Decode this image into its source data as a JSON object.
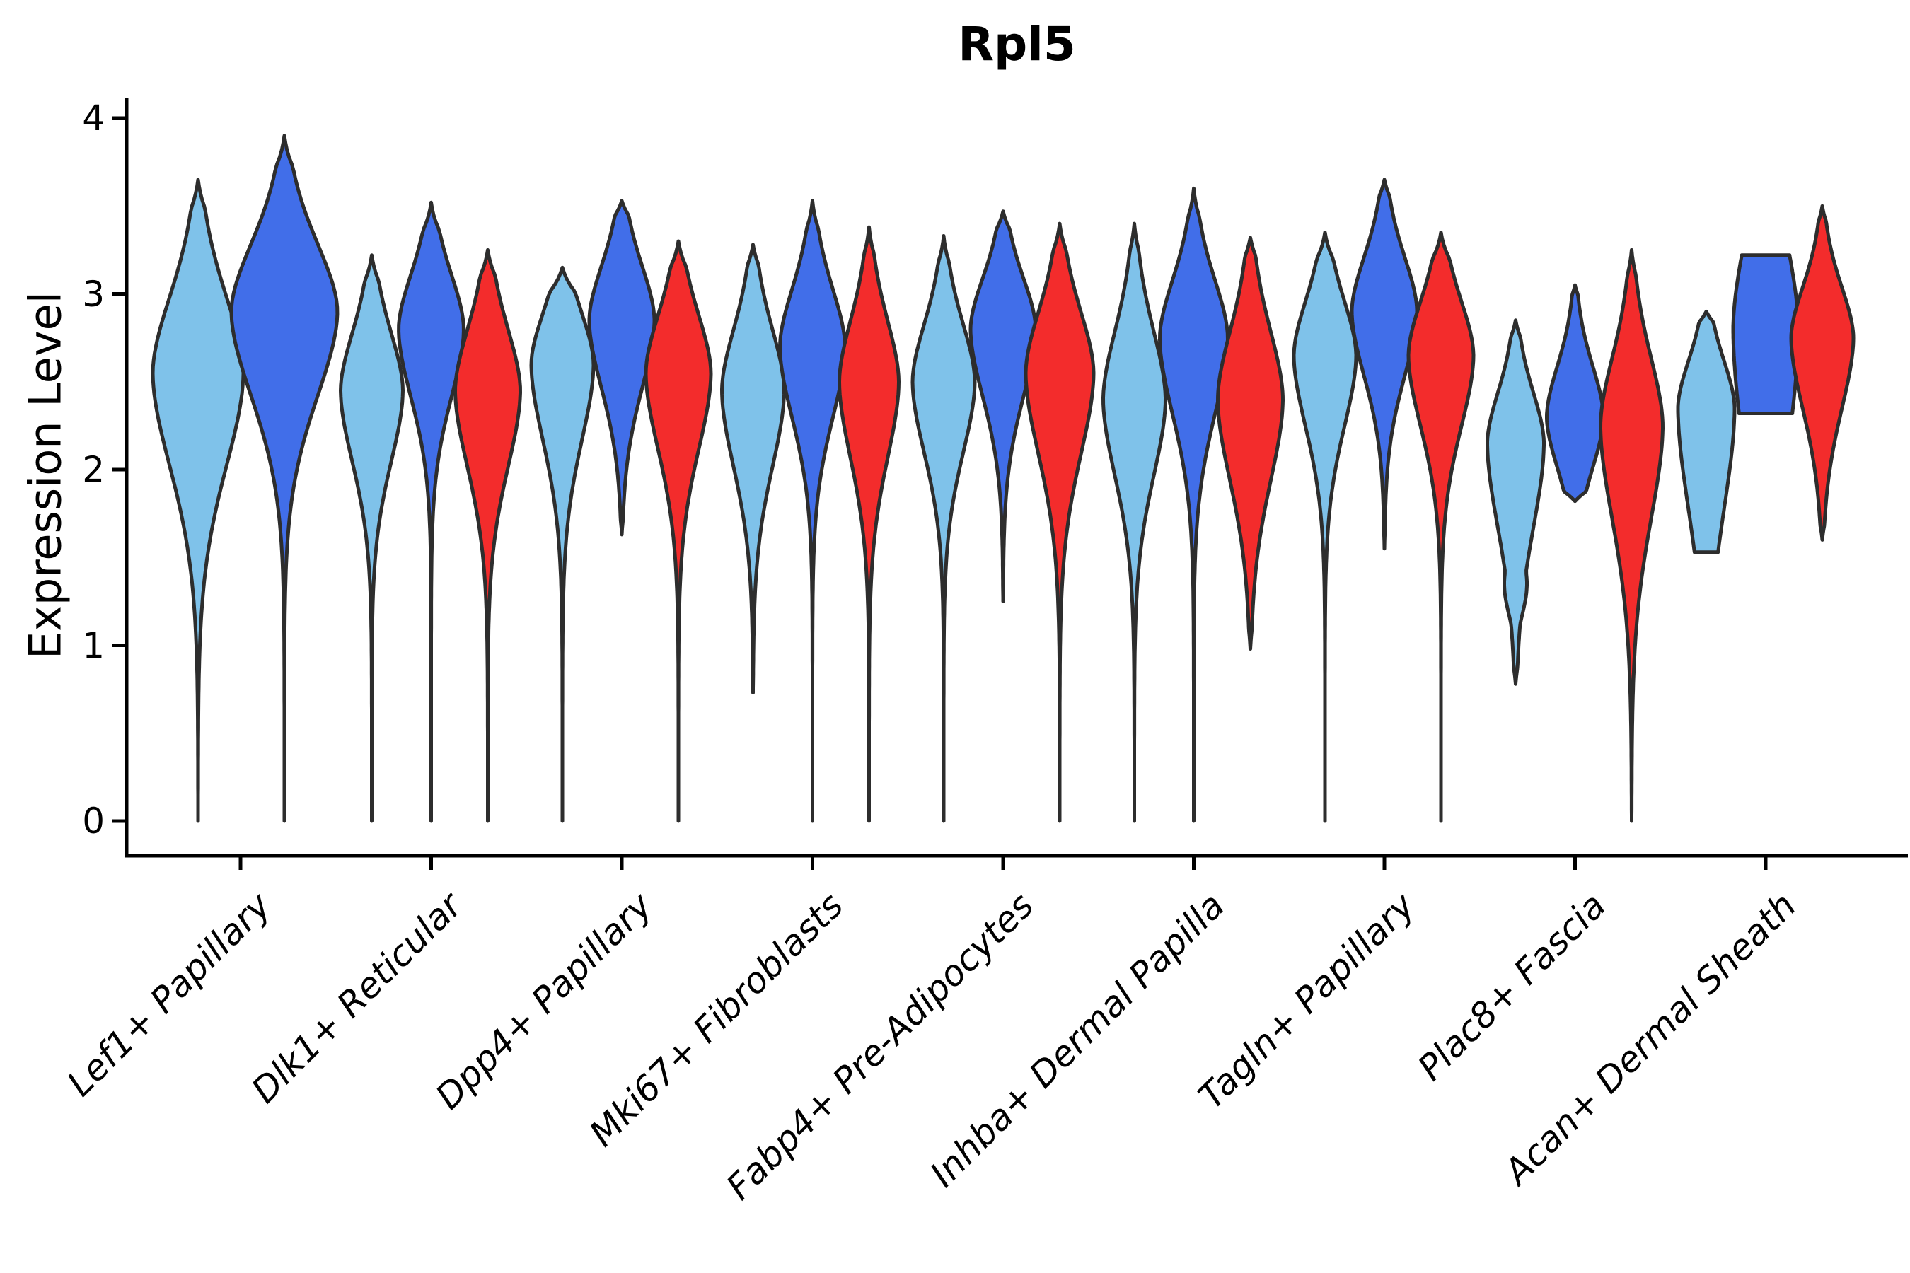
{
  "title": "Rpl5",
  "ylabel": "Expression Level",
  "chart_data": {
    "type": "violin",
    "title": "Rpl5",
    "xlabel": "",
    "ylabel": "Expression Level",
    "ylim": [
      0,
      4
    ],
    "yticks": [
      0,
      1,
      2,
      3,
      4
    ],
    "grid": false,
    "legend": "none",
    "categories": [
      "Lef1+ Papillary",
      "Dlk1+ Reticular",
      "Dpp4+ Papillary",
      "Mki67+ Fibroblasts",
      "Fabp4+ Pre-Adipocytes",
      "Inhba+ Dermal Papilla",
      "Tagln+ Papillary",
      "Plac8+ Fascia",
      "Acan+ Dermal Sheath"
    ],
    "series_colors": {
      "light_blue": "#7FC2EA",
      "dark_blue": "#416EE9",
      "red": "#F32C2C"
    },
    "outline_color": "#2D2D2D",
    "axis_color": "#000000",
    "violins": [
      {
        "category": "Lef1+ Papillary",
        "series": "light_blue",
        "min": 0,
        "max": 3.65,
        "mode": 2.55,
        "sigma_low": 0.55,
        "sigma_high": 0.45,
        "halfwidth": 64,
        "offset": -60
      },
      {
        "category": "Lef1+ Papillary",
        "series": "dark_blue",
        "min": 0,
        "max": 3.9,
        "mode": 2.9,
        "sigma_low": 0.5,
        "sigma_high": 0.4,
        "halfwidth": 75,
        "offset": 62
      },
      {
        "category": "Dlk1+ Reticular",
        "series": "light_blue",
        "min": 0,
        "max": 3.22,
        "mode": 2.45,
        "sigma_low": 0.42,
        "sigma_high": 0.34,
        "halfwidth": 44,
        "offset": -84
      },
      {
        "category": "Dlk1+ Reticular",
        "series": "dark_blue",
        "min": 0,
        "max": 3.52,
        "mode": 2.8,
        "sigma_low": 0.4,
        "sigma_high": 0.32,
        "halfwidth": 46,
        "offset": 0
      },
      {
        "category": "Dlk1+ Reticular",
        "series": "red",
        "min": 0,
        "max": 3.25,
        "mode": 2.45,
        "sigma_low": 0.45,
        "sigma_high": 0.36,
        "halfwidth": 46,
        "offset": 80
      },
      {
        "category": "Dpp4+ Papillary",
        "series": "light_blue",
        "min": 0,
        "max": 3.15,
        "mode": 2.6,
        "sigma_low": 0.45,
        "sigma_high": 0.3,
        "halfwidth": 44,
        "offset": -84
      },
      {
        "category": "Dpp4+ Papillary",
        "series": "dark_blue",
        "min": 1.63,
        "max": 3.53,
        "mode": 2.85,
        "sigma_low": 0.4,
        "sigma_high": 0.32,
        "halfwidth": 46,
        "offset": 0
      },
      {
        "category": "Dpp4+ Papillary",
        "series": "red",
        "min": 0,
        "max": 3.3,
        "mode": 2.55,
        "sigma_low": 0.45,
        "sigma_high": 0.34,
        "halfwidth": 46,
        "offset": 80
      },
      {
        "category": "Mki67+ Fibroblasts",
        "series": "light_blue",
        "min": 0.73,
        "max": 3.28,
        "mode": 2.45,
        "sigma_low": 0.45,
        "sigma_high": 0.36,
        "halfwidth": 44,
        "offset": -84
      },
      {
        "category": "Mki67+ Fibroblasts",
        "series": "dark_blue",
        "min": 0,
        "max": 3.53,
        "mode": 2.7,
        "sigma_low": 0.42,
        "sigma_high": 0.34,
        "halfwidth": 46,
        "offset": 0
      },
      {
        "category": "Mki67+ Fibroblasts",
        "series": "red",
        "min": 0,
        "max": 3.38,
        "mode": 2.5,
        "sigma_low": 0.45,
        "sigma_high": 0.36,
        "halfwidth": 42,
        "offset": 80
      },
      {
        "category": "Fabp4+ Pre-Adipocytes",
        "series": "light_blue",
        "min": 0,
        "max": 3.33,
        "mode": 2.5,
        "sigma_low": 0.42,
        "sigma_high": 0.34,
        "halfwidth": 44,
        "offset": -84
      },
      {
        "category": "Fabp4+ Pre-Adipocytes",
        "series": "dark_blue",
        "min": 1.25,
        "max": 3.47,
        "mode": 2.8,
        "sigma_low": 0.4,
        "sigma_high": 0.3,
        "halfwidth": 46,
        "offset": 0
      },
      {
        "category": "Fabp4+ Pre-Adipocytes",
        "series": "red",
        "min": 0,
        "max": 3.4,
        "mode": 2.55,
        "sigma_low": 0.48,
        "sigma_high": 0.36,
        "halfwidth": 48,
        "offset": 80
      },
      {
        "category": "Inhba+ Dermal Papilla",
        "series": "light_blue",
        "min": 0,
        "max": 3.4,
        "mode": 2.4,
        "sigma_low": 0.45,
        "sigma_high": 0.4,
        "halfwidth": 44,
        "offset": -84
      },
      {
        "category": "Inhba+ Dermal Papilla",
        "series": "dark_blue",
        "min": 0,
        "max": 3.6,
        "mode": 2.75,
        "sigma_low": 0.45,
        "sigma_high": 0.34,
        "halfwidth": 48,
        "offset": 0
      },
      {
        "category": "Inhba+ Dermal Papilla",
        "series": "red",
        "min": 0.98,
        "max": 3.32,
        "mode": 2.4,
        "sigma_low": 0.48,
        "sigma_high": 0.4,
        "halfwidth": 46,
        "offset": 80
      },
      {
        "category": "Tagln+ Papillary",
        "series": "light_blue",
        "min": 0,
        "max": 3.35,
        "mode": 2.65,
        "sigma_low": 0.42,
        "sigma_high": 0.32,
        "halfwidth": 44,
        "offset": -84
      },
      {
        "category": "Tagln+ Papillary",
        "series": "dark_blue",
        "min": 1.55,
        "max": 3.65,
        "mode": 2.9,
        "sigma_low": 0.38,
        "sigma_high": 0.32,
        "halfwidth": 46,
        "offset": 0
      },
      {
        "category": "Tagln+ Papillary",
        "series": "red",
        "min": 0,
        "max": 3.35,
        "mode": 2.65,
        "sigma_low": 0.42,
        "sigma_high": 0.32,
        "halfwidth": 46,
        "offset": 80
      },
      {
        "category": "Plac8+ Fascia",
        "series": "light_blue",
        "min": 0.78,
        "max": 2.85,
        "mode": 2.15,
        "sigma_low": 0.5,
        "sigma_high": 0.3,
        "halfwidth": 40,
        "offset": -84,
        "bumps": [
          {
            "center": 1.35,
            "sigma": 0.17,
            "halfwidth": 16
          }
        ]
      },
      {
        "category": "Plac8+ Fascia",
        "series": "dark_blue",
        "min": 1.82,
        "max": 3.05,
        "mode": 2.3,
        "sigma_low": 0.3,
        "sigma_high": 0.3,
        "halfwidth": 40,
        "offset": 0
      },
      {
        "category": "Plac8+ Fascia",
        "series": "red",
        "min": 0,
        "max": 3.25,
        "mode": 2.25,
        "sigma_low": 0.55,
        "sigma_high": 0.4,
        "halfwidth": 44,
        "offset": 80
      },
      {
        "category": "Acan+ Dermal Sheath",
        "series": "light_blue",
        "min": 1.53,
        "max": 2.9,
        "mode": 2.35,
        "sigma_low": 0.6,
        "sigma_high": 0.28,
        "halfwidth": 40,
        "offset": -84,
        "blunt_min": true
      },
      {
        "category": "Acan+ Dermal Sheath",
        "series": "dark_blue",
        "min": 2.32,
        "max": 3.22,
        "mode": 2.8,
        "sigma_low": 0.8,
        "sigma_high": 0.55,
        "halfwidth": 46,
        "offset": 0,
        "blunt_min": true,
        "blunt_max": true
      },
      {
        "category": "Acan+ Dermal Sheath",
        "series": "red",
        "min": 1.6,
        "max": 3.5,
        "mode": 2.75,
        "sigma_low": 0.42,
        "sigma_high": 0.3,
        "halfwidth": 44,
        "offset": 80
      }
    ]
  }
}
